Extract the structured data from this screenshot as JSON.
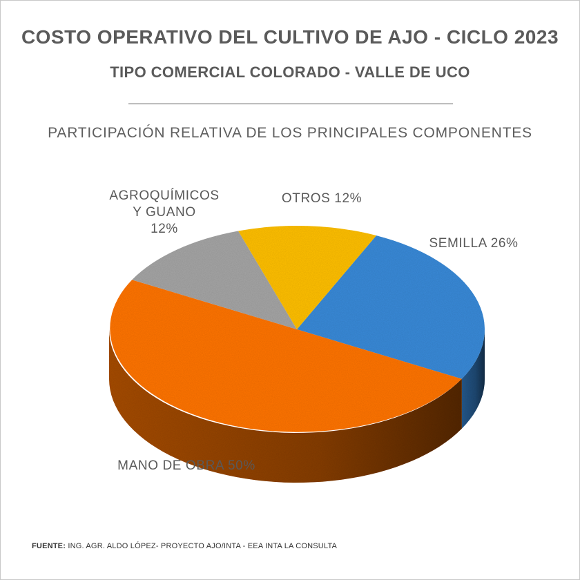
{
  "header": {
    "title": "COSTO OPERATIVO DEL CULTIVO DE AJO - CICLO 2023",
    "subtitle": "TIPO COMERCIAL COLORADO - VALLE DE UCO",
    "section": "PARTICIPACIÓN RELATIVA DE LOS PRINCIPALES COMPONENTES"
  },
  "chart_data": {
    "type": "pie",
    "style": "3d-tilted",
    "slices": [
      {
        "label": "SEMILLA",
        "value": 26,
        "color": "#3b8ad8",
        "display": "SEMILLA 26%"
      },
      {
        "label": "MANO DE OBRA",
        "value": 50,
        "color": "#ff7410",
        "display": "MANO DE OBRA 50%"
      },
      {
        "label": "AGROQUÍMICOS Y GUANO",
        "value": 12,
        "color": "#a5a5a5",
        "display_lines": [
          "AGROQUÍMICOS",
          "Y GUANO",
          "12%"
        ]
      },
      {
        "label": "OTROS",
        "value": 12,
        "color": "#ffc000",
        "display": "OTROS 12%"
      }
    ]
  },
  "footer": {
    "label": "FUENTE:",
    "text": " ING. AGR. ALDO LÓPEZ- PROYECTO AJO/INTA - EEA INTA LA CONSULTA"
  }
}
